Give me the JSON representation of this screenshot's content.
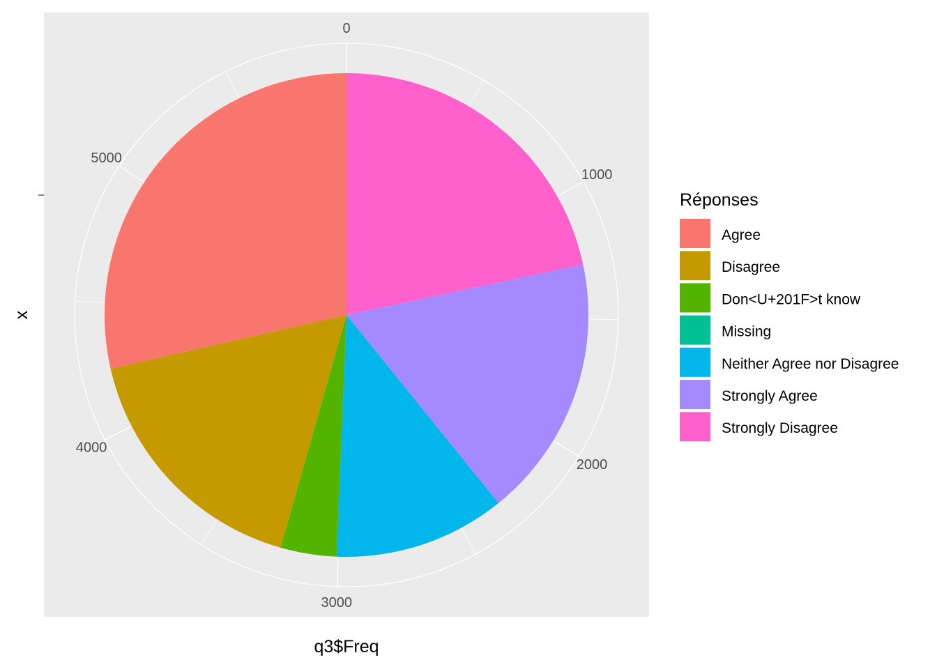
{
  "chart_data": {
    "type": "pie",
    "coord": "polar",
    "xlabel": "q3$Freq",
    "ylabel": "x",
    "theta_range": [
      0,
      5935
    ],
    "theta_ticks": [
      0,
      1000,
      2000,
      3000,
      4000,
      5000
    ],
    "legend": {
      "title": "Réponses",
      "position": "right"
    },
    "grid": true,
    "slices": [
      {
        "label": "Strongly Disagree",
        "value": 1285,
        "color": "#FF61CC"
      },
      {
        "label": "Strongly Agree",
        "value": 1041,
        "color": "#A58AFF"
      },
      {
        "label": "Neither Agree nor Disagree",
        "value": 680,
        "color": "#00B6EB"
      },
      {
        "label": "Missing",
        "value": 0,
        "color": "#00C094"
      },
      {
        "label": "Don<U+201F>t know",
        "value": 222,
        "color": "#53B400"
      },
      {
        "label": "Disagree",
        "value": 1012,
        "color": "#C49A00"
      },
      {
        "label": "Agree",
        "value": 1695,
        "color": "#F8766D"
      }
    ],
    "legend_order": [
      "Agree",
      "Disagree",
      "Don<U+201F>t know",
      "Missing",
      "Neither Agree nor Disagree",
      "Strongly Agree",
      "Strongly Disagree"
    ]
  }
}
